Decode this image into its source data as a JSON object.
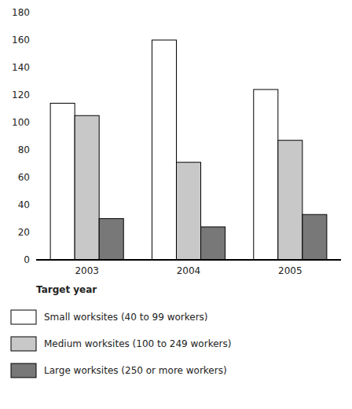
{
  "chart_data": {
    "type": "bar",
    "xlabel": "Target year",
    "categories": [
      "2003",
      "2004",
      "2005"
    ],
    "series": [
      {
        "name": "Small worksites (40 to 99 workers)",
        "color": "#ffffff",
        "values": [
          114,
          160,
          124
        ]
      },
      {
        "name": "Medium worksites (100 to 249 workers)",
        "color": "#c8c8c8",
        "values": [
          105,
          71,
          87
        ]
      },
      {
        "name": "Large worksites (250 or more workers)",
        "color": "#787878",
        "values": [
          30,
          24,
          33
        ]
      }
    ],
    "ylim": [
      0,
      180
    ],
    "yticks": [
      0,
      20,
      40,
      60,
      80,
      100,
      120,
      140,
      160,
      180
    ],
    "grid": false,
    "legend": "bottom"
  }
}
